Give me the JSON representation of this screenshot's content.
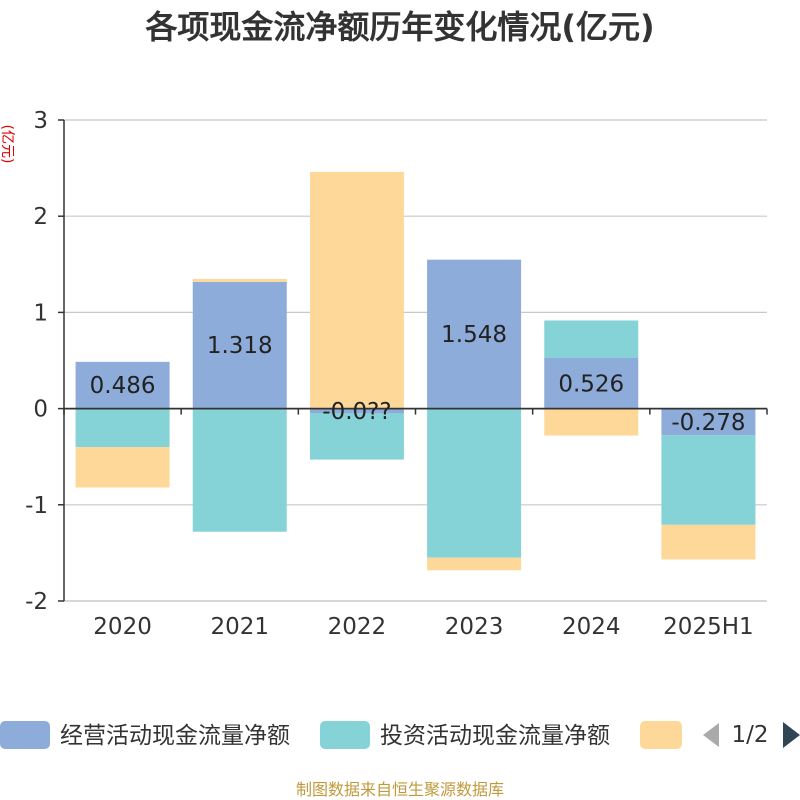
{
  "title": "各项现金流净额历年变化情况(亿元)",
  "unit": "(亿元)",
  "source": "制图数据来自恒生聚源数据库",
  "legend": {
    "page": "1/2"
  },
  "colors": {
    "operating": "#8eacd9",
    "investing": "#86d3d7",
    "financing": "#fed898",
    "grid": "#c8c8c8",
    "axis": "#333333",
    "arrow_active": "#2f4554",
    "arrow_inactive": "#aaaaaa"
  },
  "chart_data": {
    "type": "bar",
    "stacked": true,
    "categories": [
      "2020",
      "2021",
      "2022",
      "2023",
      "2024",
      "2025H1"
    ],
    "series": [
      {
        "name": "经营活动现金流量净额",
        "values": [
          0.486,
          1.318,
          -0.05,
          1.548,
          0.526,
          -0.278
        ],
        "labels": [
          "0.486",
          "1.318",
          "-0.0??",
          "1.548",
          "0.526",
          "-0.278"
        ]
      },
      {
        "name": "投资活动现金流量净额",
        "values": [
          -0.4,
          -1.28,
          -0.48,
          -1.55,
          0.39,
          -0.93
        ],
        "labels": []
      },
      {
        "name": "",
        "values": [
          -0.42,
          0.03,
          2.46,
          -0.13,
          -0.28,
          -0.36
        ],
        "labels": []
      }
    ],
    "yticks": [
      "3",
      "2",
      "1",
      "0",
      "-1",
      "-2"
    ],
    "ylim": [
      -2,
      3
    ],
    "grid": true,
    "legend_position": "bottom"
  }
}
